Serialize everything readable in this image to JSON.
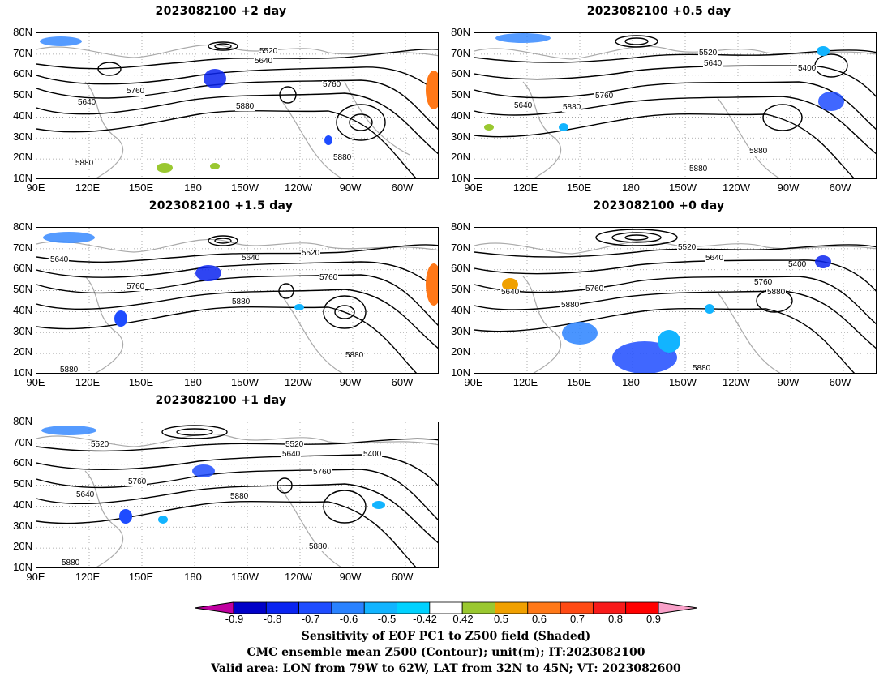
{
  "panels": [
    {
      "id": "p1",
      "title": "2023082100 +2 day",
      "contours": [
        "5520",
        "5640",
        "5640",
        "5760",
        "5760",
        "5880",
        "5880",
        "5880"
      ]
    },
    {
      "id": "p2",
      "title": "2023082100 +0.5 day",
      "contours": [
        "5520",
        "5640",
        "5400",
        "5640",
        "5760",
        "5880",
        "5880",
        "5880"
      ]
    },
    {
      "id": "p3",
      "title": "2023082100 +1.5 day",
      "contours": [
        "5520",
        "5640",
        "5640",
        "5760",
        "5760",
        "5880",
        "5880",
        "5880"
      ]
    },
    {
      "id": "p4",
      "title": "2023082100 +0 day",
      "contours": [
        "5520",
        "5640",
        "5400",
        "5640",
        "5760",
        "5760",
        "5880",
        "5880",
        "5880"
      ]
    },
    {
      "id": "p5",
      "title": "2023082100 +1 day",
      "contours": [
        "5520",
        "5520",
        "5640",
        "5400",
        "5640",
        "5760",
        "5760",
        "5880",
        "5880",
        "5880"
      ]
    }
  ],
  "lat_labels": [
    "80N",
    "70N",
    "60N",
    "50N",
    "40N",
    "30N",
    "20N",
    "10N"
  ],
  "lon_labels": [
    "90E",
    "120E",
    "150E",
    "180",
    "150W",
    "120W",
    "90W",
    "60W"
  ],
  "colorbar": {
    "ticks": [
      "-0.9",
      "-0.8",
      "-0.7",
      "-0.6",
      "-0.5",
      "-0.42",
      "0.42",
      "0.5",
      "0.6",
      "0.7",
      "0.8",
      "0.9"
    ],
    "colors": [
      "#c000a0",
      "#0000c8",
      "#0a24f0",
      "#1e4cff",
      "#2a82ff",
      "#12b4ff",
      "#00d2ff",
      "#ffffff",
      "#9ac830",
      "#f0a000",
      "#ff7818",
      "#ff4a14",
      "#f81a1a",
      "#ff0000",
      "#f8a0c8"
    ]
  },
  "footer": {
    "line1": "Sensitivity of EOF PC1 to Z500 field (Shaded)",
    "line2": "CMC ensemble mean Z500 (Contour); unit(m); IT:2023082100",
    "line3": "Valid area: LON from 79W to 62W, LAT from 32N to 45N; VT: 2023082600"
  }
}
